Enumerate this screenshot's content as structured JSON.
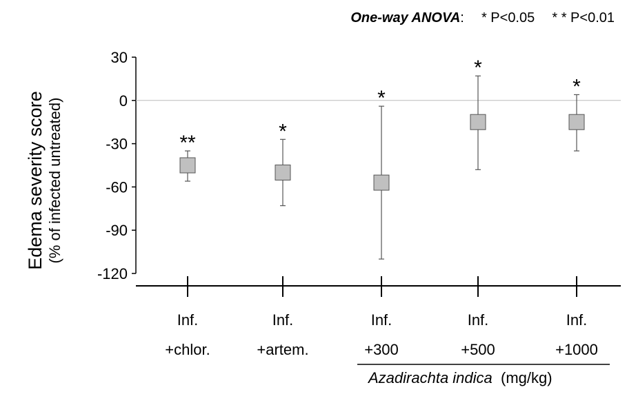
{
  "legend": {
    "test": "One-way ANOVA",
    "colon": ":",
    "sig1": "* P<0.05",
    "sig2": "* * P<0.01"
  },
  "chart_data": {
    "type": "scatter",
    "ylabel_main": "Edema severity score",
    "ylabel_sub": "(% of infected untreated)",
    "ylim": [
      -120,
      30
    ],
    "yticks": [
      30,
      0,
      -30,
      -60,
      -90,
      -120
    ],
    "reference_line": 0,
    "categories": [
      {
        "line1": "Inf.",
        "line2": "+chlor."
      },
      {
        "line1": "Inf.",
        "line2": "+artem."
      },
      {
        "line1": "Inf.",
        "line2": "+300"
      },
      {
        "line1": "Inf.",
        "line2": "+500"
      },
      {
        "line1": "Inf.",
        "line2": "+1000"
      }
    ],
    "series": [
      {
        "values": [
          -45,
          -50,
          -57,
          -15,
          -15
        ],
        "error_low": [
          -56,
          -73,
          -110,
          -48,
          -35
        ],
        "error_high": [
          -35,
          -27,
          -4,
          17,
          4
        ],
        "significance": [
          "**",
          "*",
          "*",
          "*",
          "*"
        ]
      }
    ],
    "group_bracket": {
      "label": "Azadirachta indica",
      "unit": "(mg/kg)",
      "from_category": 2,
      "to_category": 4
    },
    "colors": {
      "marker_fill": "#c0c0c0",
      "marker_stroke": "#555555",
      "error": "#555555",
      "zero_line": "#bbbbbb",
      "axis": "#000000"
    }
  }
}
